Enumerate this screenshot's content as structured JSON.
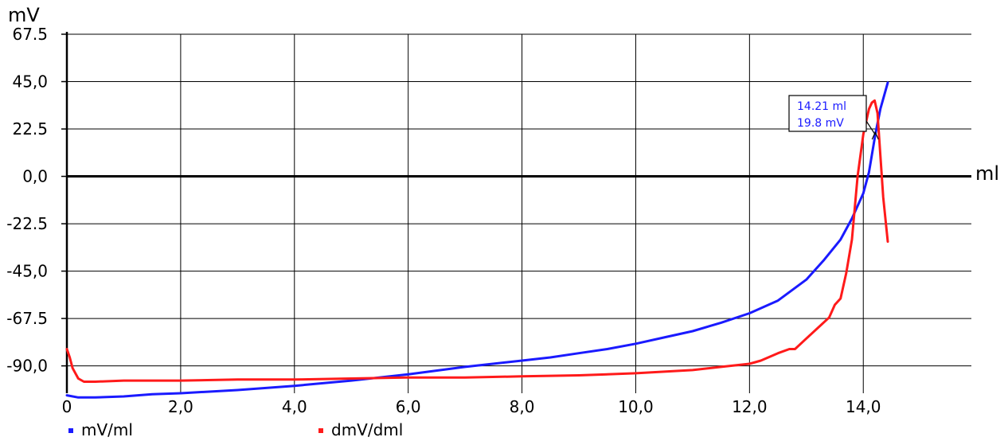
{
  "chart_data": {
    "type": "line",
    "y_unit_label": "mV",
    "x_unit_label": "ml",
    "xlim": [
      0,
      15.9
    ],
    "ylim": [
      -103,
      67.5
    ],
    "x_ticks": [
      {
        "value": 0,
        "label": "0"
      },
      {
        "value": 2,
        "label": "2,0"
      },
      {
        "value": 4,
        "label": "4,0"
      },
      {
        "value": 6,
        "label": "6,0"
      },
      {
        "value": 8,
        "label": "8,0"
      },
      {
        "value": 10,
        "label": "10,0"
      },
      {
        "value": 12,
        "label": "12,0"
      },
      {
        "value": 14,
        "label": "14,0"
      }
    ],
    "y_ticks": [
      {
        "value": 67.5,
        "label": "67.5"
      },
      {
        "value": 45,
        "label": "45,0"
      },
      {
        "value": 22.5,
        "label": "22.5"
      },
      {
        "value": 0,
        "label": "0,0"
      },
      {
        "value": -22.5,
        "label": "-22.5"
      },
      {
        "value": -45,
        "label": "-45,0"
      },
      {
        "value": -67.5,
        "label": "-67.5"
      },
      {
        "value": -90,
        "label": "-90,0"
      }
    ],
    "grid": true,
    "legend_position": "bottom-left",
    "series": [
      {
        "name": "mV/ml",
        "color": "#1a1aff",
        "x": [
          0,
          0.2,
          0.5,
          1.0,
          1.5,
          2.0,
          3.0,
          4.0,
          5.0,
          6.0,
          7.0,
          8.0,
          8.5,
          9.0,
          9.5,
          10.0,
          10.5,
          11.0,
          11.5,
          12.0,
          12.5,
          13.0,
          13.3,
          13.6,
          13.8,
          14.0,
          14.1,
          14.21,
          14.3,
          14.43
        ],
        "y": [
          -104,
          -105,
          -105,
          -104.5,
          -103.5,
          -103,
          -101.5,
          -99.5,
          -97,
          -94,
          -90.5,
          -87.5,
          -86,
          -84,
          -82,
          -79.5,
          -76.5,
          -73.5,
          -69.5,
          -65,
          -59,
          -49,
          -40,
          -30,
          -20,
          -8,
          2,
          19.8,
          32,
          44.5
        ]
      },
      {
        "name": "dmV/dml",
        "color": "#ff1a1a",
        "x": [
          0,
          0.05,
          0.1,
          0.2,
          0.3,
          0.5,
          1.0,
          2.0,
          3.0,
          4.0,
          5.0,
          6.0,
          7.0,
          8.0,
          9.0,
          10.0,
          11.0,
          11.5,
          12.0,
          12.2,
          12.5,
          12.7,
          12.8,
          13.0,
          13.2,
          13.4,
          13.5,
          13.6,
          13.7,
          13.8,
          13.9,
          14.0,
          14.1,
          14.15,
          14.2,
          14.25,
          14.3,
          14.35,
          14.43
        ],
        "y": [
          -82,
          -86,
          -91,
          -96,
          -97.5,
          -97.5,
          -97,
          -97,
          -96.5,
          -96.5,
          -96,
          -95.5,
          -95.5,
          -95,
          -94.5,
          -93.5,
          -92,
          -90.5,
          -89,
          -87.5,
          -84,
          -82,
          -82,
          -77,
          -72,
          -67,
          -61,
          -58,
          -46,
          -30,
          0,
          20,
          32,
          35,
          36,
          30,
          10,
          -10,
          -31
        ]
      }
    ],
    "annotation": {
      "lines": [
        "14.21 ml",
        "19.8 mV"
      ],
      "x": 14.21,
      "y": 19.8
    }
  }
}
